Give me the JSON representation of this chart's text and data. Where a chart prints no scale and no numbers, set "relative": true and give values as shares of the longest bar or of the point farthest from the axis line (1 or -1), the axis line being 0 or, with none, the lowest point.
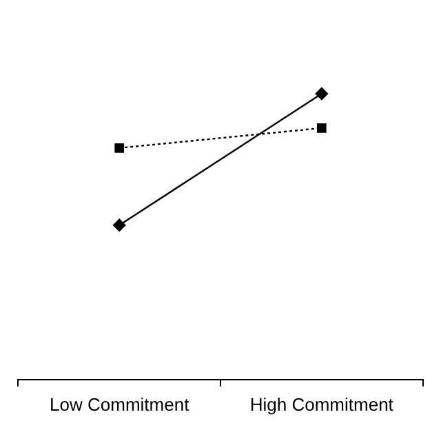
{
  "chart_data": {
    "type": "line",
    "relative": true,
    "categories": [
      "Low Commitment",
      "High Commitment"
    ],
    "grid": false,
    "legend": false,
    "series": [
      {
        "color": "#000000",
        "values": [
          0.54,
          1
        ],
        "marker": "diamond",
        "line_style": "solid"
      },
      {
        "color": "#000000",
        "values": [
          0.81,
          0.88
        ],
        "marker": "square",
        "line_style": "dotted"
      }
    ]
  }
}
